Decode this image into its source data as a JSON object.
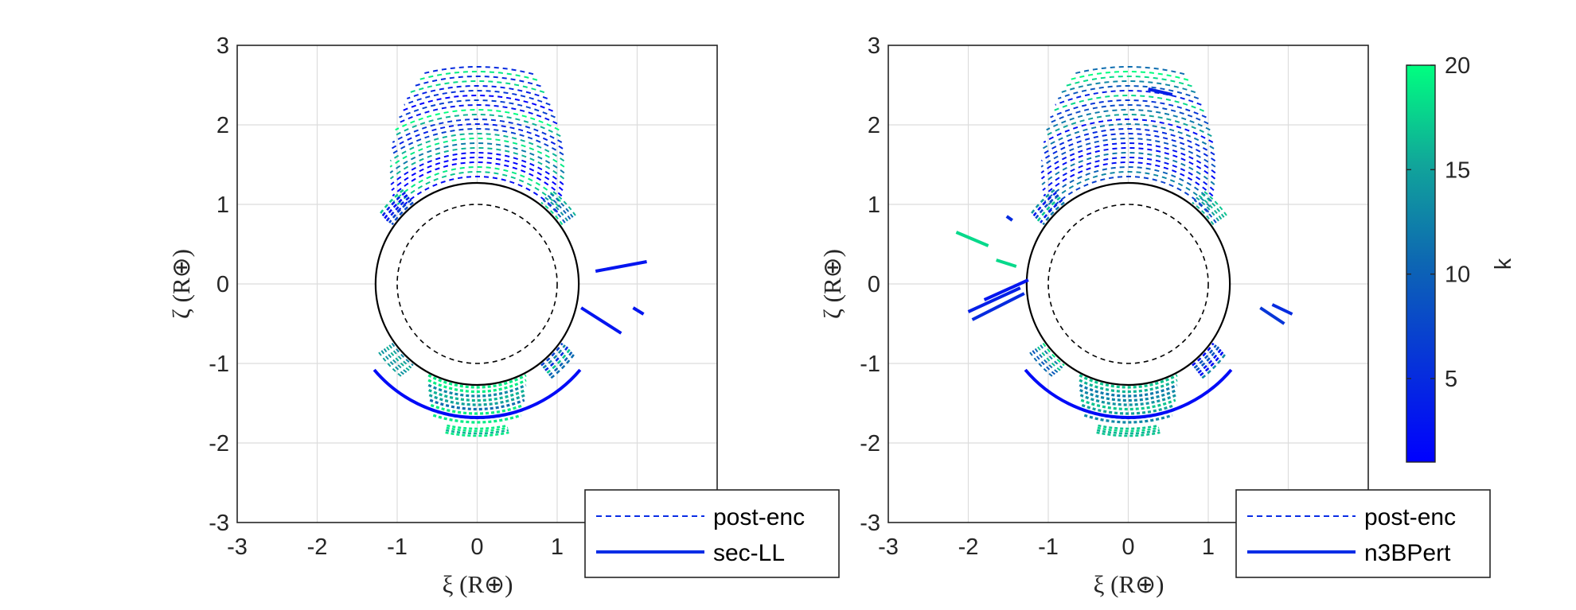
{
  "chart_data": [
    {
      "type": "line",
      "panel": "left",
      "xlabel": "ξ (R⊕)",
      "ylabel": "ζ (R⊕)",
      "xlim": [
        -3,
        3
      ],
      "ylim": [
        -3,
        3
      ],
      "xticks": [
        "-3",
        "-2",
        "-1",
        "0",
        "1",
        "2"
      ],
      "yticks": [
        "-3",
        "-2",
        "-1",
        "0",
        "1",
        "2",
        "3"
      ],
      "grid": true,
      "legend": {
        "placement": "bottom-right",
        "entries": [
          {
            "label": "post-enc",
            "style": "dashed"
          },
          {
            "label": "sec-LL",
            "style": "solid"
          }
        ]
      },
      "circles": [
        {
          "center": [
            0,
            0
          ],
          "r": 1.27,
          "style": "solid"
        },
        {
          "center": [
            0,
            0
          ],
          "r": 1.0,
          "style": "dashed"
        }
      ],
      "solid_series": [
        {
          "k": 2,
          "arc": {
            "r": 1.68,
            "a0": 220,
            "a1": 320
          }
        },
        {
          "k": 3,
          "points": [
            [
              1.48,
              0.16
            ],
            [
              2.12,
              0.28
            ]
          ]
        },
        {
          "k": 3,
          "points": [
            [
              1.3,
              -0.3
            ],
            [
              1.8,
              -0.62
            ]
          ]
        },
        {
          "k": 3,
          "points": [
            [
              1.95,
              -0.3
            ],
            [
              2.08,
              -0.38
            ]
          ]
        }
      ]
    },
    {
      "type": "line",
      "panel": "right",
      "xlabel": "ξ (R⊕)",
      "ylabel": "ζ (R⊕)",
      "xlim": [
        -3,
        3
      ],
      "ylim": [
        -3,
        3
      ],
      "xticks": [
        "-3",
        "-2",
        "-1",
        "0",
        "1",
        "2"
      ],
      "yticks": [
        "-3",
        "-2",
        "-1",
        "0",
        "1",
        "2",
        "3"
      ],
      "grid": true,
      "legend": {
        "placement": "bottom-right",
        "entries": [
          {
            "label": "post-enc",
            "style": "dashed"
          },
          {
            "label": "n3BPert",
            "style": "solid"
          }
        ]
      },
      "circles": [
        {
          "center": [
            0,
            0
          ],
          "r": 1.27,
          "style": "solid"
        },
        {
          "center": [
            0,
            0
          ],
          "r": 1.0,
          "style": "dashed"
        }
      ],
      "solid_series": [
        {
          "k": 2,
          "arc": {
            "r": 1.68,
            "a0": 220,
            "a1": 320
          }
        },
        {
          "k": 4,
          "points": [
            [
              0.25,
              2.45
            ],
            [
              0.55,
              2.38
            ]
          ]
        },
        {
          "k": 18,
          "points": [
            [
              -2.15,
              0.65
            ],
            [
              -1.75,
              0.48
            ]
          ]
        },
        {
          "k": 18,
          "points": [
            [
              -1.65,
              0.3
            ],
            [
              -1.4,
              0.22
            ]
          ]
        },
        {
          "k": 5,
          "points": [
            [
              -1.52,
              0.85
            ],
            [
              -1.45,
              0.8
            ]
          ]
        },
        {
          "k": 4,
          "points": [
            [
              -2.0,
              -0.35
            ],
            [
              -1.35,
              -0.05
            ]
          ]
        },
        {
          "k": 5,
          "points": [
            [
              -1.95,
              -0.45
            ],
            [
              -1.3,
              -0.12
            ]
          ]
        },
        {
          "k": 3,
          "points": [
            [
              -1.8,
              -0.2
            ],
            [
              -1.25,
              0.05
            ]
          ]
        },
        {
          "k": 6,
          "points": [
            [
              1.65,
              -0.3
            ],
            [
              1.95,
              -0.5
            ]
          ]
        },
        {
          "k": 5,
          "points": [
            [
              1.8,
              -0.26
            ],
            [
              2.05,
              -0.38
            ]
          ]
        }
      ]
    }
  ],
  "colorbar": {
    "label": "k",
    "min": 1,
    "max": 20,
    "ticks": [
      "5",
      "10",
      "15",
      "20"
    ],
    "colors": {
      "low": "#0000ff",
      "high": "#00ff80"
    }
  },
  "colors": {
    "earth_outline": "#000000",
    "grid": "#dcdcdc",
    "legend_line": "#0a2de6"
  }
}
